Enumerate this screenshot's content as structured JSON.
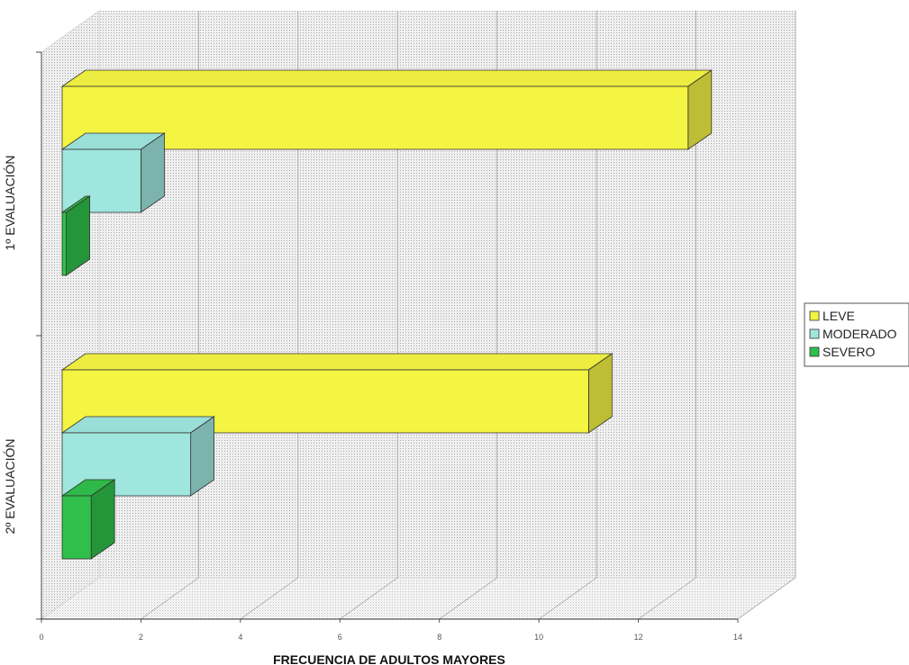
{
  "chart_data": {
    "type": "bar",
    "orientation": "horizontal",
    "three_d": true,
    "categories": [
      "1º EVALUACIÓN",
      "2º EVALUACIÓN"
    ],
    "series": [
      {
        "name": "LEVE",
        "values": [
          13,
          11
        ],
        "color": "#f4f443"
      },
      {
        "name": "MODERADO",
        "values": [
          2,
          3
        ],
        "color": "#9fe6de"
      },
      {
        "name": "SEVERO",
        "values": [
          0.5,
          1
        ],
        "color": "#2fbf4a"
      }
    ],
    "xlabel": "FRECUENCIA DE ADULTOS MAYORES",
    "ylabel": "",
    "xlim": [
      0,
      14
    ],
    "x_ticks": [
      0,
      2,
      4,
      6,
      8,
      10,
      12,
      14
    ],
    "x_tick_labels": [
      "0",
      "2",
      "4",
      "6",
      "8",
      "10",
      "12",
      "14"
    ],
    "grid": true,
    "legend_position": "right"
  }
}
